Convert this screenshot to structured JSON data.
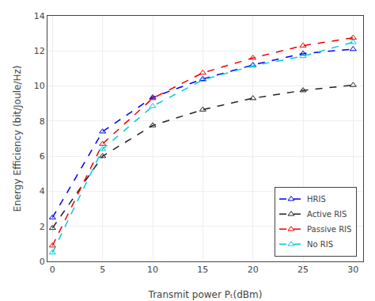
{
  "chart_data": {
    "type": "line",
    "x": [
      0,
      5,
      10,
      15,
      20,
      25,
      30
    ],
    "series": [
      {
        "name": "HRIS",
        "color": "#0000ee",
        "marker": "triangle-up-open",
        "line_style": "dash",
        "values": [
          2.5,
          7.4,
          9.35,
          10.4,
          11.2,
          11.85,
          12.1
        ]
      },
      {
        "name": "Active RIS",
        "color": "#222222",
        "marker": "triangle-up-open",
        "line_style": "dash",
        "values": [
          1.9,
          6.0,
          7.75,
          8.65,
          9.3,
          9.75,
          10.05
        ]
      },
      {
        "name": "Passive RIS",
        "color": "#ee0000",
        "marker": "triangle-up-open",
        "line_style": "dash",
        "values": [
          0.9,
          6.7,
          9.3,
          10.75,
          11.6,
          12.3,
          12.75
        ]
      },
      {
        "name": "No RIS",
        "color": "#00ccdd",
        "marker": "triangle-up-open",
        "line_style": "dash",
        "values": [
          0.5,
          6.4,
          8.85,
          10.35,
          11.15,
          11.7,
          12.5
        ]
      }
    ],
    "xlabel": "Transmit power Pₜ(dBm)",
    "ylabel": "Energy Efficiency (bit/Joule/Hz)",
    "xlim": [
      -0.5,
      31
    ],
    "ylim": [
      0,
      14
    ],
    "xticks": [
      0,
      5,
      10,
      15,
      20,
      25,
      30
    ],
    "yticks": [
      0,
      2,
      4,
      6,
      8,
      10,
      12,
      14
    ],
    "grid": true,
    "legend": "lower right"
  }
}
